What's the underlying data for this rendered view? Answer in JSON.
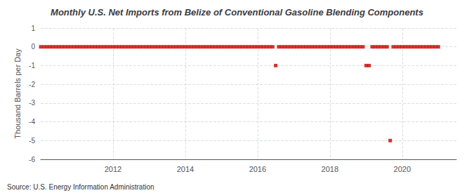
{
  "chart_data": {
    "type": "scatter",
    "title": "Monthly U.S. Net Imports from Belize of Conventional Gasoline Blending Components",
    "ylabel": "Thousand Barrels per Day",
    "annotations": [
      "Source: U.S. Energy Information Administration"
    ],
    "color": "#cc0000",
    "marker": "square",
    "grid": true,
    "xlim": [
      2010.0,
      2021.5
    ],
    "xticks": [
      2012,
      2014,
      2016,
      2018,
      2020
    ],
    "ylim": [
      -6,
      1
    ],
    "yticks": [
      1,
      0,
      -1,
      -2,
      -3,
      -4,
      -5,
      -6
    ],
    "x": [
      2010.0,
      2010.083,
      2010.167,
      2010.25,
      2010.333,
      2010.417,
      2010.5,
      2010.583,
      2010.667,
      2010.75,
      2010.833,
      2010.917,
      2011.0,
      2011.083,
      2011.167,
      2011.25,
      2011.333,
      2011.417,
      2011.5,
      2011.583,
      2011.667,
      2011.75,
      2011.833,
      2011.917,
      2012.0,
      2012.083,
      2012.167,
      2012.25,
      2012.333,
      2012.417,
      2012.5,
      2012.583,
      2012.667,
      2012.75,
      2012.833,
      2012.917,
      2013.0,
      2013.083,
      2013.167,
      2013.25,
      2013.333,
      2013.417,
      2013.5,
      2013.583,
      2013.667,
      2013.75,
      2013.833,
      2013.917,
      2014.0,
      2014.083,
      2014.167,
      2014.25,
      2014.333,
      2014.417,
      2014.5,
      2014.583,
      2014.667,
      2014.75,
      2014.833,
      2014.917,
      2015.0,
      2015.083,
      2015.167,
      2015.25,
      2015.333,
      2015.417,
      2015.5,
      2015.583,
      2015.667,
      2015.75,
      2015.833,
      2015.917,
      2016.0,
      2016.083,
      2016.167,
      2016.25,
      2016.333,
      2016.417,
      2016.5,
      2016.583,
      2016.667,
      2016.75,
      2016.833,
      2016.917,
      2017.0,
      2017.083,
      2017.167,
      2017.25,
      2017.333,
      2017.417,
      2017.5,
      2017.583,
      2017.667,
      2017.75,
      2017.833,
      2017.917,
      2018.0,
      2018.083,
      2018.167,
      2018.25,
      2018.333,
      2018.417,
      2018.5,
      2018.583,
      2018.667,
      2018.75,
      2018.833,
      2018.917,
      2019.0,
      2019.083,
      2019.167,
      2019.25,
      2019.333,
      2019.417,
      2019.5,
      2019.583,
      2019.667,
      2019.75,
      2019.833,
      2019.917,
      2020.0,
      2020.083,
      2020.167,
      2020.25,
      2020.333,
      2020.417,
      2020.5,
      2020.583,
      2020.667,
      2020.75,
      2020.833,
      2020.917,
      2021.0
    ],
    "values": [
      0,
      0,
      0,
      0,
      0,
      0,
      0,
      0,
      0,
      0,
      0,
      0,
      0,
      0,
      0,
      0,
      0,
      0,
      0,
      0,
      0,
      0,
      0,
      0,
      0,
      0,
      0,
      0,
      0,
      0,
      0,
      0,
      0,
      0,
      0,
      0,
      0,
      0,
      0,
      0,
      0,
      0,
      0,
      0,
      0,
      0,
      0,
      0,
      0,
      0,
      0,
      0,
      0,
      0,
      0,
      0,
      0,
      0,
      0,
      0,
      0,
      0,
      0,
      0,
      0,
      0,
      0,
      0,
      0,
      0,
      0,
      0,
      0,
      0,
      0,
      0,
      0,
      0,
      -1,
      0,
      0,
      0,
      0,
      0,
      0,
      0,
      0,
      0,
      0,
      0,
      0,
      0,
      0,
      0,
      0,
      0,
      0,
      0,
      0,
      0,
      0,
      0,
      0,
      0,
      0,
      0,
      0,
      0,
      -1,
      -1,
      0,
      0,
      0,
      0,
      0,
      0,
      -5,
      0,
      0,
      0,
      0,
      0,
      0,
      0,
      0,
      0,
      0,
      0,
      0,
      0,
      0,
      0,
      0
    ]
  }
}
